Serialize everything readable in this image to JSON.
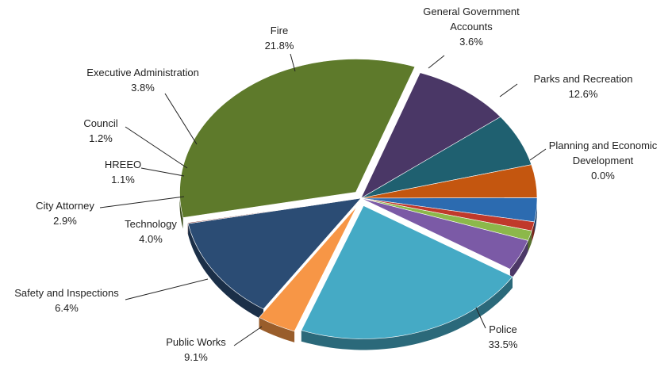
{
  "chart_data": {
    "type": "pie",
    "title": "",
    "slices": [
      {
        "name": "Police",
        "value": 33.5,
        "label": "33.5%",
        "color": "#5e7a2b"
      },
      {
        "name": "Public Works",
        "value": 9.1,
        "label": "9.1%",
        "color": "#4a3766"
      },
      {
        "name": "Safety and Inspections",
        "value": 6.4,
        "label": "6.4%",
        "color": "#1f6070"
      },
      {
        "name": "Technology",
        "value": 4.0,
        "label": "4.0%",
        "color": "#c4560f"
      },
      {
        "name": "City Attorney",
        "value": 2.9,
        "label": "2.9%",
        "color": "#2c6bb0"
      },
      {
        "name": "HREEO",
        "value": 1.1,
        "label": "1.1%",
        "color": "#c0392b"
      },
      {
        "name": "Council",
        "value": 1.2,
        "label": "1.2%",
        "color": "#8cb84a"
      },
      {
        "name": "Executive Administration",
        "value": 3.8,
        "label": "3.8%",
        "color": "#7b5aa6"
      },
      {
        "name": "Fire",
        "value": 21.8,
        "label": "21.8%",
        "color": "#45aac5"
      },
      {
        "name": "General Government Accounts",
        "value": 3.6,
        "label": "3.6%",
        "color": "#f79646"
      },
      {
        "name": "Parks and Recreation",
        "value": 12.6,
        "label": "12.6%",
        "color": "#2b4c74"
      },
      {
        "name": "Planning and Economic Development",
        "value": 0.0,
        "label": "0.0%",
        "color": "#6b1f1f"
      }
    ],
    "legend": "none",
    "style": "3d-exploded"
  }
}
